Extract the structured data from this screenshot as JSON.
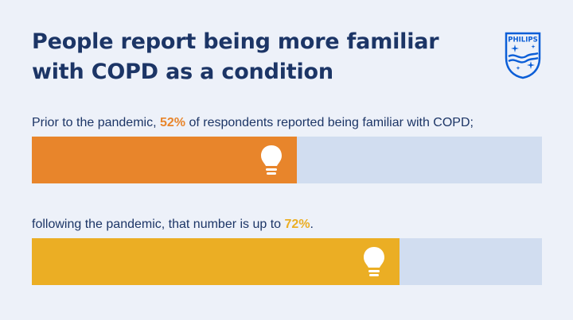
{
  "title_lines": [
    "People report being more familiar",
    "with COPD as a condition"
  ],
  "logo": {
    "text": "PHILIPS",
    "icon": "philips-shield-icon",
    "color": "#0b5ed7"
  },
  "colors": {
    "title": "#1c3566",
    "background": "#edf1f9",
    "track": "#d1ddf0",
    "before": "#e8852b",
    "after": "#ebae24"
  },
  "chart_data": {
    "type": "bar",
    "orientation": "horizontal",
    "unit": "%",
    "xlim": [
      0,
      100
    ],
    "bars": [
      {
        "value": 52,
        "color": "#e8852b",
        "icon": "lightbulb-icon",
        "caption_before": "Prior to the pandemic, ",
        "caption_value": "52%",
        "caption_after": " of respondents reported being familiar with COPD;"
      },
      {
        "value": 72,
        "color": "#ebae24",
        "icon": "lightbulb-icon",
        "caption_before": "following the pandemic, that number is up to ",
        "caption_value": "72%",
        "caption_after": "."
      }
    ]
  }
}
